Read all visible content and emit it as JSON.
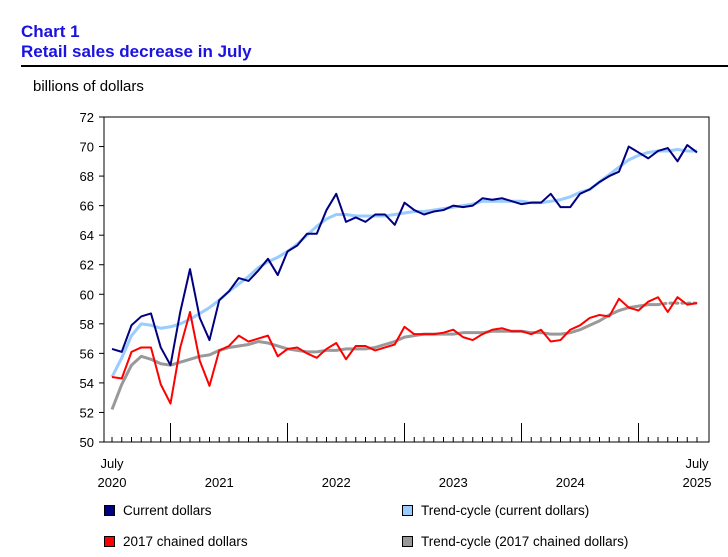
{
  "header": {
    "chart_number": "Chart 1",
    "title": "Retail sales decrease in July"
  },
  "colors": {
    "title": "#1a12e0",
    "current": "#000080",
    "trend_current": "#99ccff",
    "chained": "#ff0000",
    "trend_chained": "#999999"
  },
  "chart_data": {
    "type": "line",
    "title": "Retail sales decrease in July",
    "ylabel": "billions of dollars",
    "xlabel": "",
    "ylim": [
      50,
      72
    ],
    "yticks": [
      50,
      52,
      54,
      56,
      58,
      60,
      62,
      64,
      66,
      68,
      70,
      72
    ],
    "x_start_month": "2020-07",
    "x_end_month": "2025-07",
    "x_tick_labels": [
      {
        "month_index": 0,
        "line1": "July",
        "line2": "2020"
      },
      {
        "month_index": 11,
        "line1": "",
        "line2": "2021"
      },
      {
        "month_index": 23,
        "line1": "",
        "line2": "2022"
      },
      {
        "month_index": 35,
        "line1": "",
        "line2": "2023"
      },
      {
        "month_index": 47,
        "line1": "",
        "line2": "2024"
      },
      {
        "month_index": 60,
        "line1": "July",
        "line2": "2025"
      }
    ],
    "grid": false,
    "series": [
      {
        "name": "Current dollars",
        "color": "#000080",
        "style": "solid",
        "values": [
          56.3,
          56.1,
          57.9,
          58.5,
          58.7,
          56.4,
          55.2,
          58.8,
          61.7,
          58.4,
          56.9,
          59.6,
          60.2,
          61.1,
          60.9,
          61.6,
          62.4,
          61.3,
          62.9,
          63.3,
          64.1,
          64.1,
          65.7,
          66.8,
          64.9,
          65.2,
          64.9,
          65.4,
          65.4,
          64.7,
          66.2,
          65.7,
          65.4,
          65.6,
          65.7,
          66.0,
          65.9,
          66.0,
          66.5,
          66.4,
          66.5,
          66.3,
          66.1,
          66.2,
          66.2,
          66.8,
          65.9,
          65.9,
          66.8,
          67.1,
          67.6,
          68.0,
          68.3,
          70.0,
          69.6,
          69.2,
          69.7,
          69.9,
          69.0,
          70.1,
          69.6
        ]
      },
      {
        "name": "Trend-cycle (current dollars)",
        "color": "#99ccff",
        "style": "solid",
        "values": [
          54.4,
          55.7,
          57.2,
          58.0,
          57.9,
          57.7,
          57.8,
          58.0,
          58.3,
          58.7,
          59.1,
          59.6,
          60.2,
          60.7,
          61.2,
          61.8,
          62.2,
          62.5,
          62.9,
          63.4,
          64.0,
          64.6,
          65.1,
          65.4,
          65.4,
          65.3,
          65.3,
          65.3,
          65.3,
          65.4,
          65.5,
          65.6,
          65.6,
          65.7,
          65.8,
          65.9,
          66.0,
          66.1,
          66.3,
          66.3,
          66.3,
          66.3,
          66.3,
          66.2,
          66.2,
          66.3,
          66.4,
          66.6,
          66.9,
          67.1,
          67.6,
          68.1,
          68.6,
          69.1,
          69.4,
          69.6,
          69.7,
          69.7,
          69.8,
          69.7,
          69.7
        ]
      },
      {
        "name": "2017 chained dollars",
        "color": "#ff0000",
        "style": "solid",
        "values": [
          54.4,
          54.3,
          56.1,
          56.4,
          56.4,
          53.9,
          52.6,
          56.4,
          58.8,
          55.5,
          53.8,
          56.2,
          56.5,
          57.2,
          56.8,
          57.0,
          57.2,
          55.8,
          56.3,
          56.4,
          56.0,
          55.7,
          56.3,
          56.7,
          55.6,
          56.5,
          56.5,
          56.2,
          56.4,
          56.6,
          57.8,
          57.3,
          57.3,
          57.3,
          57.4,
          57.6,
          57.1,
          56.9,
          57.3,
          57.6,
          57.7,
          57.5,
          57.5,
          57.3,
          57.6,
          56.8,
          56.9,
          57.6,
          57.9,
          58.4,
          58.6,
          58.5,
          59.7,
          59.1,
          58.9,
          59.5,
          59.8,
          58.8,
          59.8,
          59.3,
          59.4
        ]
      },
      {
        "name": "Trend-cycle (2017 chained dollars)",
        "color": "#999999",
        "style": "solid-then-dotted",
        "dotted_from_index": 56,
        "values": [
          52.2,
          53.9,
          55.2,
          55.8,
          55.6,
          55.3,
          55.2,
          55.4,
          55.6,
          55.8,
          55.9,
          56.2,
          56.4,
          56.5,
          56.6,
          56.8,
          56.7,
          56.5,
          56.3,
          56.2,
          56.1,
          56.1,
          56.2,
          56.2,
          56.3,
          56.3,
          56.3,
          56.4,
          56.6,
          56.8,
          57.1,
          57.2,
          57.3,
          57.3,
          57.3,
          57.3,
          57.4,
          57.4,
          57.4,
          57.5,
          57.5,
          57.5,
          57.5,
          57.4,
          57.4,
          57.3,
          57.3,
          57.4,
          57.6,
          57.9,
          58.2,
          58.6,
          58.9,
          59.1,
          59.2,
          59.3,
          59.3,
          59.4,
          59.4,
          59.4,
          59.4
        ]
      }
    ],
    "legend": {
      "placement": "bottom",
      "items": [
        "Current dollars",
        "Trend-cycle (current dollars)",
        "2017 chained dollars",
        "Trend-cycle (2017 chained dollars)"
      ]
    }
  }
}
